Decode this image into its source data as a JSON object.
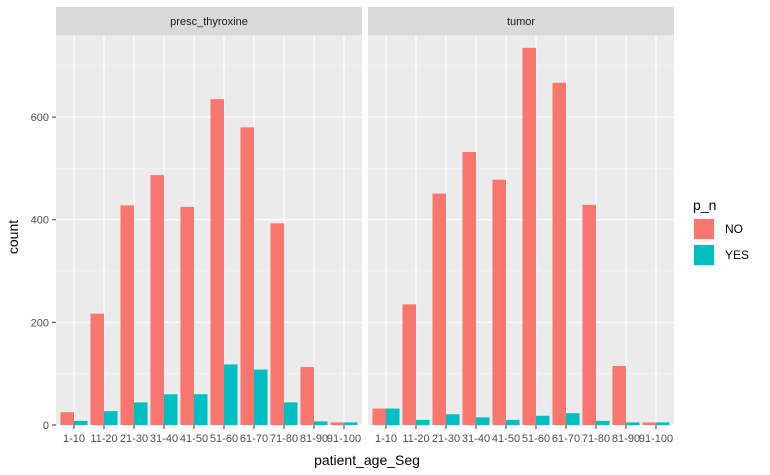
{
  "chart_data": {
    "type": "bar",
    "layout": "grouped",
    "facet_by": "",
    "xlabel": "patient_age_Seg",
    "ylabel": "count",
    "ylim": [
      0,
      760
    ],
    "yticks": [
      0,
      200,
      400,
      600
    ],
    "grid": true,
    "legend": {
      "title": "p_n",
      "position": "right"
    },
    "categories": [
      "1-10",
      "11-20",
      "21-30",
      "31-40",
      "41-50",
      "51-60",
      "61-70",
      "71-80",
      "81-90",
      "91-100"
    ],
    "colors": {
      "NO": "#F8766D",
      "YES": "#00BFC4"
    },
    "panels": [
      {
        "label": "presc_thyroxine",
        "series": [
          {
            "name": "NO",
            "values": [
              25,
              217,
              428,
              487,
              425,
              635,
              580,
              393,
              113,
              5
            ]
          },
          {
            "name": "YES",
            "values": [
              8,
              27,
              44,
              60,
              60,
              118,
              108,
              44,
              7,
              5
            ]
          }
        ]
      },
      {
        "label": "tumor",
        "series": [
          {
            "name": "NO",
            "values": [
              32,
              235,
              451,
              532,
              478,
              735,
              667,
              429,
              115,
              5
            ]
          },
          {
            "name": "YES",
            "values": [
              32,
              10,
              21,
              15,
              10,
              18,
              23,
              8,
              5,
              5
            ]
          }
        ]
      }
    ]
  }
}
